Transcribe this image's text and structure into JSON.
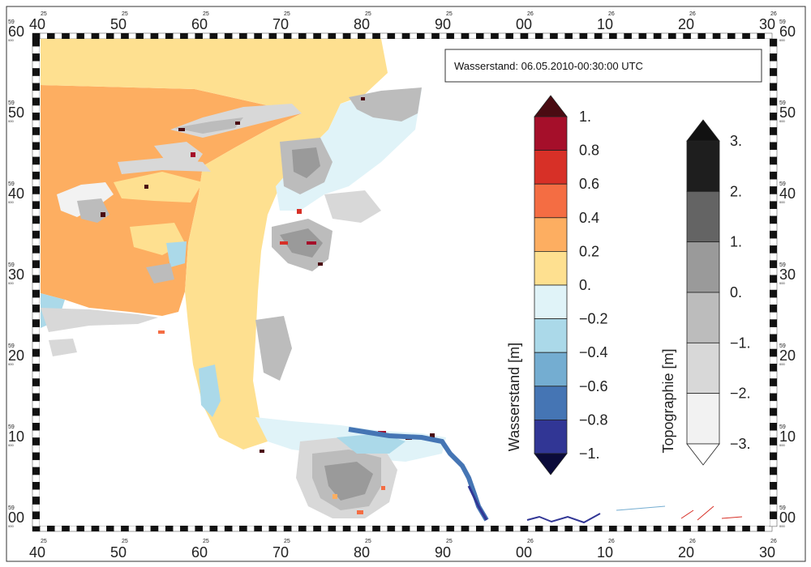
{
  "title": "Wasserstand: 06.05.2010-00:30:00 UTC",
  "axes": {
    "top_ticks": [
      {
        "pre": "25",
        "main": "40"
      },
      {
        "pre": "25",
        "main": "50"
      },
      {
        "pre": "25",
        "main": "60"
      },
      {
        "pre": "25",
        "main": "70"
      },
      {
        "pre": "25",
        "main": "80"
      },
      {
        "pre": "25",
        "main": "90"
      },
      {
        "pre": "26",
        "main": "00"
      },
      {
        "pre": "26",
        "main": "10"
      },
      {
        "pre": "26",
        "main": "20"
      },
      {
        "pre": "26",
        "main": "30"
      }
    ],
    "side_ticks": [
      {
        "pre": "59",
        "main": "60",
        "sub": "000"
      },
      {
        "pre": "59",
        "main": "50",
        "sub": "000"
      },
      {
        "pre": "59",
        "main": "40",
        "sub": "000"
      },
      {
        "pre": "59",
        "main": "30",
        "sub": "000"
      },
      {
        "pre": "59",
        "main": "20",
        "sub": "000"
      },
      {
        "pre": "59",
        "main": "10",
        "sub": "000"
      },
      {
        "pre": "59",
        "main": "00",
        "sub": "000"
      }
    ]
  },
  "legend_water": {
    "title": "Wasserstand [m]",
    "labels": [
      "1.",
      "0.8",
      "0.6",
      "0.4",
      "0.2",
      "0.",
      "−0.2",
      "−0.4",
      "−0.6",
      "−0.8",
      "−1."
    ],
    "colors": [
      "#a50f2a",
      "#d73027",
      "#f46d43",
      "#fdae61",
      "#fee090",
      "#e0f3f8",
      "#abd9e9",
      "#74add1",
      "#4575b4",
      "#313695"
    ],
    "top_arrow_color": "#4a0b12",
    "bottom_arrow_color": "#0b0b3a"
  },
  "legend_topo": {
    "title": "Topographie [m]",
    "labels": [
      "3.",
      "2.",
      "1.",
      "0.",
      "−1.",
      "−2.",
      "−3."
    ],
    "colors": [
      "#1e1e1e",
      "#646464",
      "#9a9a9a",
      "#bcbcbc",
      "#d8d8d8",
      "#f2f2f2"
    ],
    "top_arrow_color": "#111111",
    "bottom_arrow_color": "#ffffff"
  }
}
